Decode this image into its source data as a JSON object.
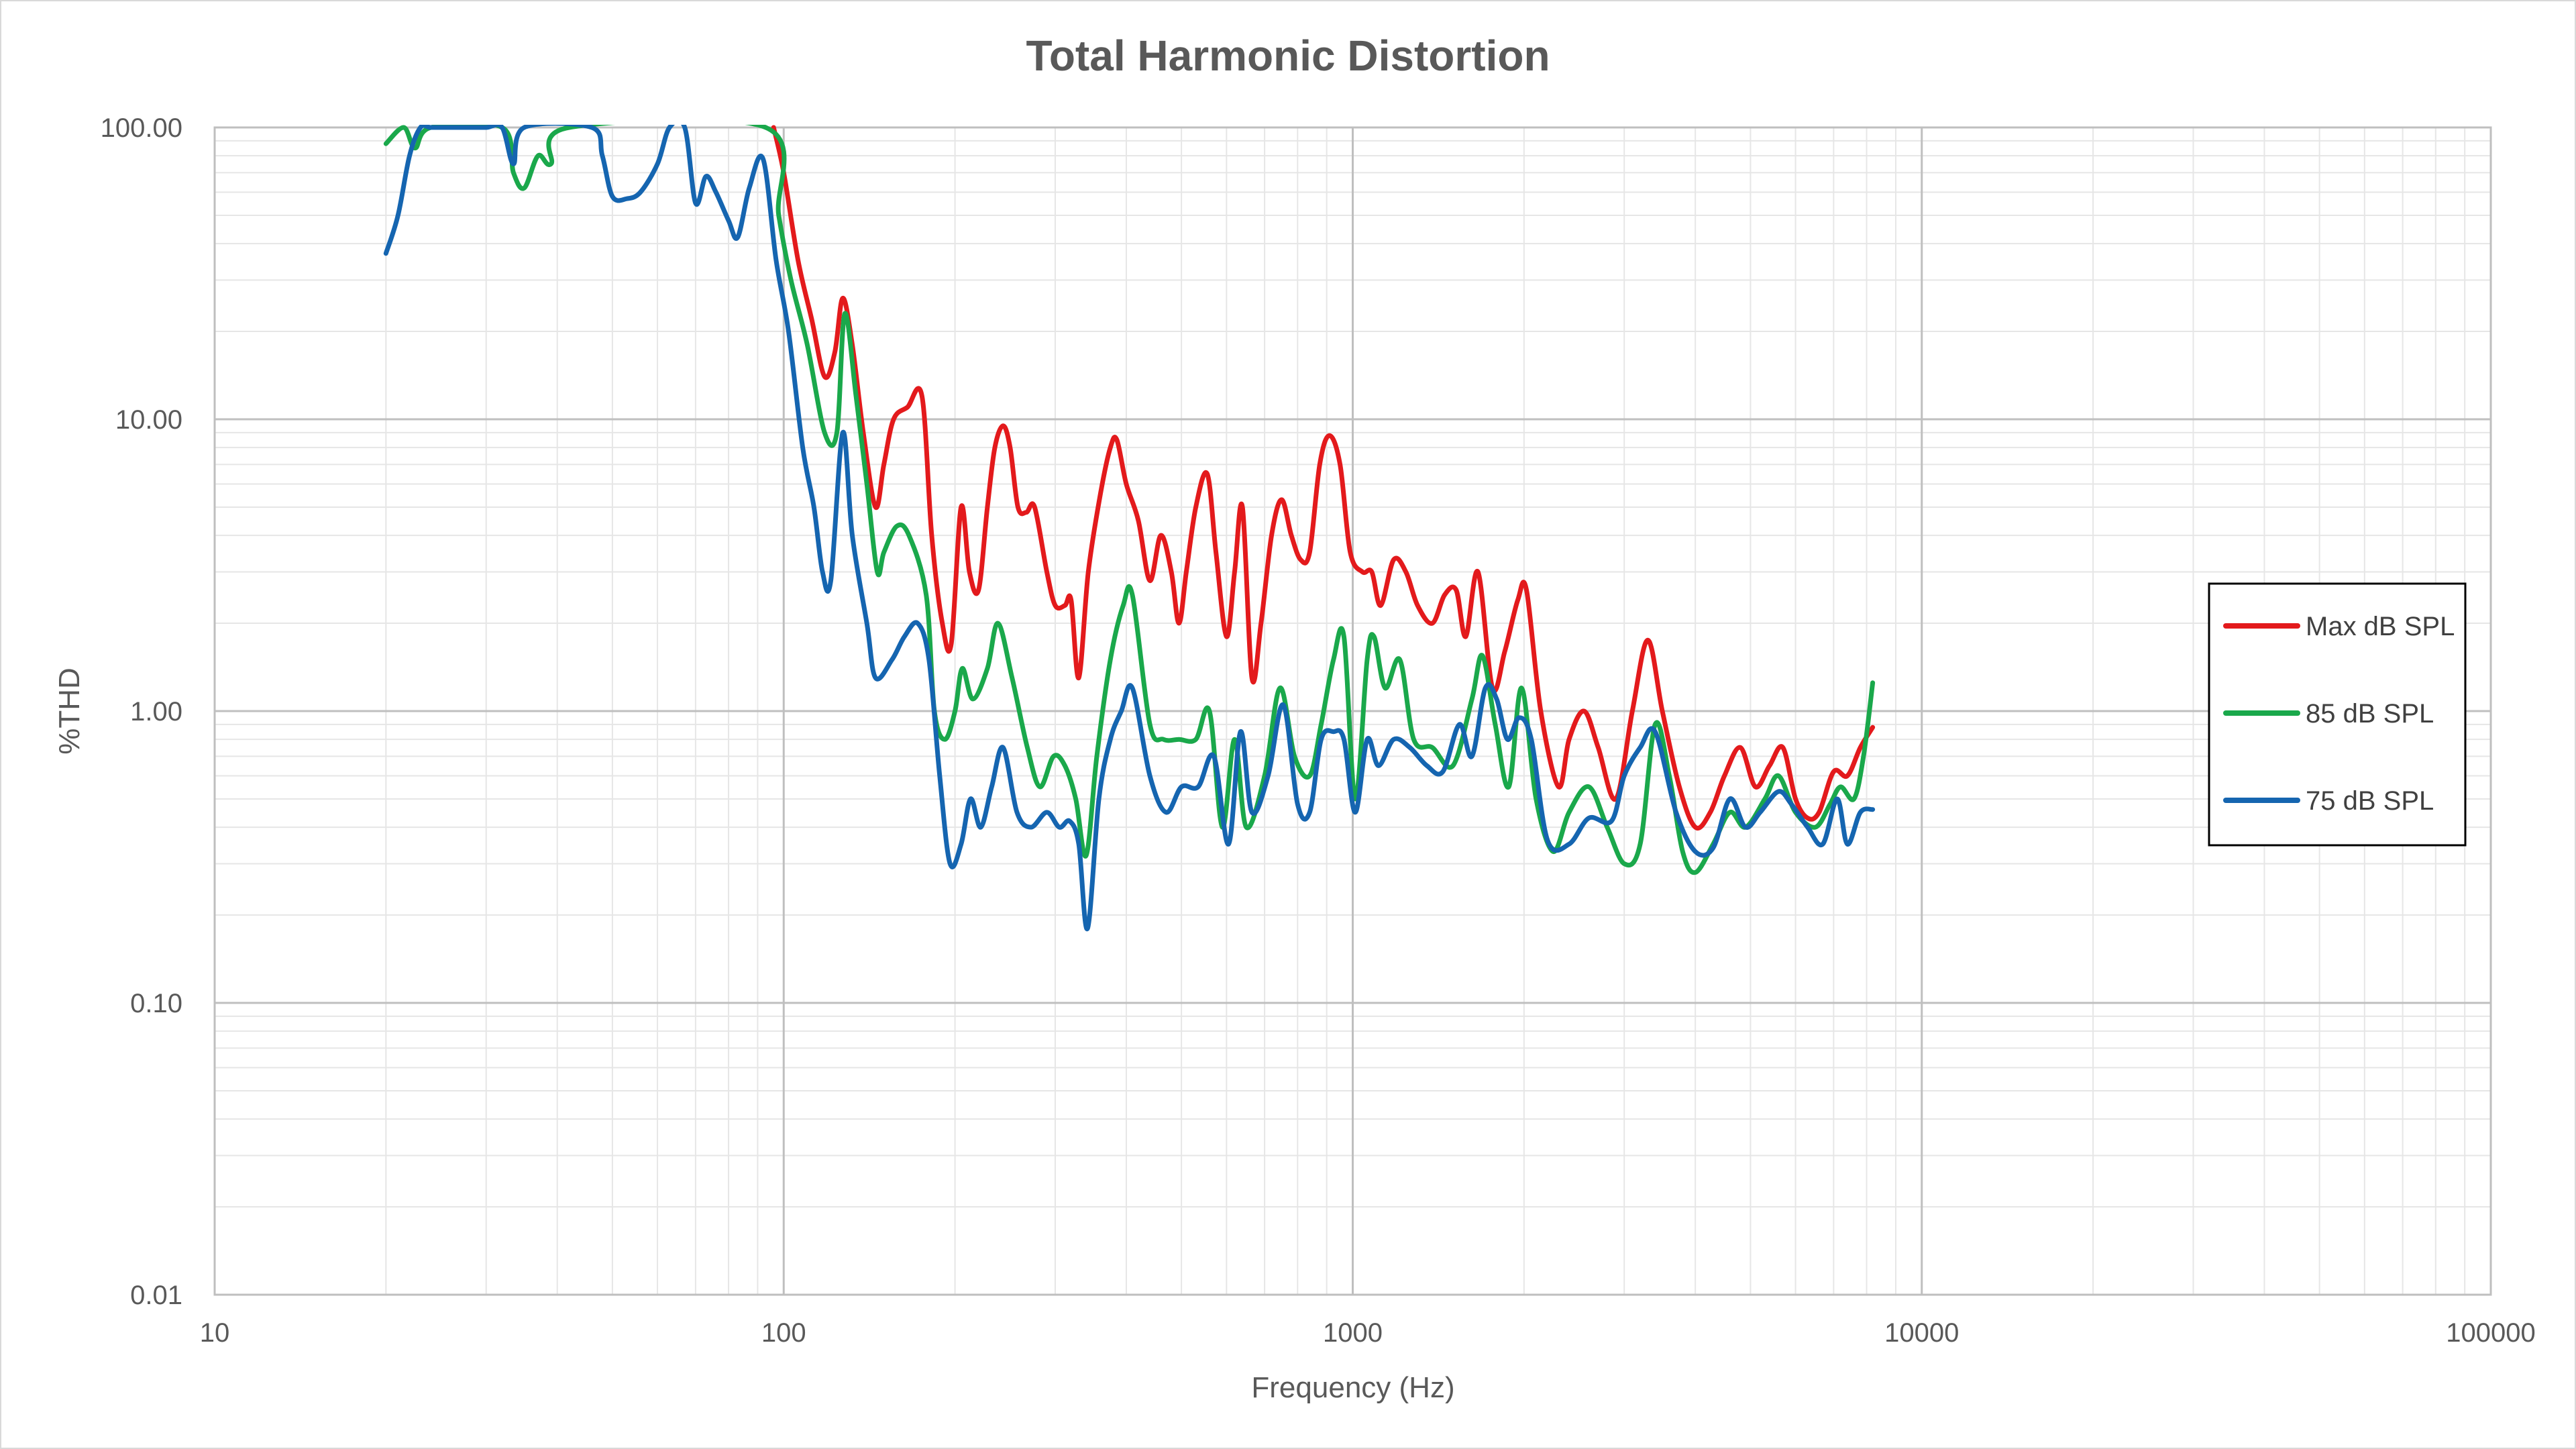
{
  "chart_data": {
    "type": "line",
    "title": "Total Harmonic Distortion",
    "xlabel": "Frequency (Hz)",
    "ylabel": "%THD",
    "x_scale": "log",
    "y_scale": "log",
    "xlim": [
      10,
      100000
    ],
    "ylim": [
      0.01,
      100
    ],
    "x_ticks": [
      10,
      100,
      1000,
      10000,
      100000
    ],
    "x_tick_labels": [
      "10",
      "100",
      "1000",
      "10000",
      "100000"
    ],
    "y_ticks": [
      0.01,
      0.1,
      1,
      10,
      100
    ],
    "y_tick_labels": [
      "0.01",
      "0.10",
      "1.00",
      "10.00",
      "100.00"
    ],
    "grid": true,
    "legend_position": "right",
    "series": [
      {
        "name": "Max dB SPL",
        "color": "#e31a1c",
        "points": [
          [
            96,
            100
          ],
          [
            100,
            70
          ],
          [
            106,
            35
          ],
          [
            112,
            22
          ],
          [
            118,
            14
          ],
          [
            123,
            17
          ],
          [
            127,
            26
          ],
          [
            132,
            18
          ],
          [
            138,
            9
          ],
          [
            145,
            5
          ],
          [
            150,
            7
          ],
          [
            156,
            10
          ],
          [
            165,
            11
          ],
          [
            175,
            12
          ],
          [
            182,
            4
          ],
          [
            190,
            2
          ],
          [
            197,
            1.7
          ],
          [
            205,
            5
          ],
          [
            212,
            3
          ],
          [
            220,
            2.6
          ],
          [
            228,
            5
          ],
          [
            235,
            8
          ],
          [
            243,
            9.5
          ],
          [
            250,
            8
          ],
          [
            258,
            5
          ],
          [
            267,
            4.8
          ],
          [
            276,
            5
          ],
          [
            290,
            3
          ],
          [
            300,
            2.3
          ],
          [
            312,
            2.3
          ],
          [
            320,
            2.4
          ],
          [
            330,
            1.3
          ],
          [
            343,
            3
          ],
          [
            360,
            5.5
          ],
          [
            375,
            8
          ],
          [
            385,
            8.5
          ],
          [
            400,
            6
          ],
          [
            420,
            4.5
          ],
          [
            440,
            2.8
          ],
          [
            460,
            4
          ],
          [
            480,
            3
          ],
          [
            495,
            2
          ],
          [
            510,
            3
          ],
          [
            530,
            5
          ],
          [
            555,
            6.5
          ],
          [
            575,
            3.5
          ],
          [
            600,
            1.8
          ],
          [
            620,
            3
          ],
          [
            640,
            5
          ],
          [
            665,
            1.3
          ],
          [
            690,
            2
          ],
          [
            720,
            4
          ],
          [
            750,
            5.3
          ],
          [
            780,
            4
          ],
          [
            810,
            3.3
          ],
          [
            840,
            3.5
          ],
          [
            875,
            7
          ],
          [
            910,
            8.8
          ],
          [
            950,
            7
          ],
          [
            990,
            3.5
          ],
          [
            1040,
            3
          ],
          [
            1080,
            3
          ],
          [
            1120,
            2.3
          ],
          [
            1180,
            3.3
          ],
          [
            1240,
            3
          ],
          [
            1300,
            2.3
          ],
          [
            1380,
            2
          ],
          [
            1450,
            2.5
          ],
          [
            1520,
            2.6
          ],
          [
            1580,
            1.8
          ],
          [
            1660,
            3
          ],
          [
            1760,
            1.2
          ],
          [
            1850,
            1.6
          ],
          [
            1950,
            2.4
          ],
          [
            2020,
            2.6
          ],
          [
            2140,
            1
          ],
          [
            2300,
            0.55
          ],
          [
            2400,
            0.8
          ],
          [
            2550,
            1
          ],
          [
            2700,
            0.75
          ],
          [
            2900,
            0.5
          ],
          [
            3100,
            1
          ],
          [
            3300,
            1.75
          ],
          [
            3500,
            1
          ],
          [
            3750,
            0.55
          ],
          [
            4000,
            0.4
          ],
          [
            4250,
            0.45
          ],
          [
            4500,
            0.6
          ],
          [
            4800,
            0.75
          ],
          [
            5100,
            0.55
          ],
          [
            5400,
            0.65
          ],
          [
            5700,
            0.75
          ],
          [
            6000,
            0.5
          ],
          [
            6300,
            0.43
          ],
          [
            6600,
            0.45
          ],
          [
            7000,
            0.62
          ],
          [
            7400,
            0.6
          ],
          [
            7800,
            0.75
          ],
          [
            8200,
            0.88
          ]
        ]
      },
      {
        "name": "85 dB SPL",
        "color": "#1aa84b",
        "points": [
          [
            20,
            88
          ],
          [
            21.5,
            100
          ],
          [
            22.5,
            85
          ],
          [
            24,
            100
          ],
          [
            32,
            100
          ],
          [
            33.5,
            70
          ],
          [
            35,
            62
          ],
          [
            37,
            80
          ],
          [
            39,
            75
          ],
          [
            42,
            100
          ],
          [
            93,
            100
          ],
          [
            98,
            50
          ],
          [
            103,
            30
          ],
          [
            110,
            18
          ],
          [
            118,
            9
          ],
          [
            124,
            9
          ],
          [
            128,
            23
          ],
          [
            134,
            12
          ],
          [
            140,
            6
          ],
          [
            146,
            3
          ],
          [
            150,
            3.5
          ],
          [
            158,
            4.3
          ],
          [
            166,
            4
          ],
          [
            178,
            2.5
          ],
          [
            184,
            1
          ],
          [
            192,
            0.8
          ],
          [
            200,
            1
          ],
          [
            206,
            1.4
          ],
          [
            215,
            1.1
          ],
          [
            228,
            1.4
          ],
          [
            238,
            2
          ],
          [
            252,
            1.3
          ],
          [
            268,
            0.75
          ],
          [
            282,
            0.55
          ],
          [
            298,
            0.7
          ],
          [
            312,
            0.65
          ],
          [
            326,
            0.5
          ],
          [
            340,
            0.32
          ],
          [
            355,
            0.7
          ],
          [
            375,
            1.5
          ],
          [
            395,
            2.3
          ],
          [
            410,
            2.5
          ],
          [
            440,
            0.9
          ],
          [
            465,
            0.8
          ],
          [
            495,
            0.8
          ],
          [
            530,
            0.8
          ],
          [
            560,
            1
          ],
          [
            590,
            0.4
          ],
          [
            620,
            0.8
          ],
          [
            650,
            0.4
          ],
          [
            700,
            0.6
          ],
          [
            745,
            1.2
          ],
          [
            790,
            0.7
          ],
          [
            840,
            0.6
          ],
          [
            880,
            0.9
          ],
          [
            925,
            1.5
          ],
          [
            965,
            1.8
          ],
          [
            1010,
            0.5
          ],
          [
            1060,
            1.5
          ],
          [
            1090,
            1.8
          ],
          [
            1140,
            1.2
          ],
          [
            1210,
            1.5
          ],
          [
            1280,
            0.8
          ],
          [
            1380,
            0.75
          ],
          [
            1500,
            0.65
          ],
          [
            1620,
            1.1
          ],
          [
            1690,
            1.55
          ],
          [
            1780,
            0.9
          ],
          [
            1880,
            0.55
          ],
          [
            1980,
            1.2
          ],
          [
            2100,
            0.5
          ],
          [
            2250,
            0.33
          ],
          [
            2400,
            0.45
          ],
          [
            2600,
            0.55
          ],
          [
            2800,
            0.4
          ],
          [
            3000,
            0.3
          ],
          [
            3200,
            0.35
          ],
          [
            3400,
            0.9
          ],
          [
            3600,
            0.6
          ],
          [
            3800,
            0.33
          ],
          [
            4000,
            0.28
          ],
          [
            4300,
            0.35
          ],
          [
            4600,
            0.45
          ],
          [
            4900,
            0.4
          ],
          [
            5300,
            0.5
          ],
          [
            5600,
            0.6
          ],
          [
            6000,
            0.45
          ],
          [
            6500,
            0.4
          ],
          [
            6900,
            0.48
          ],
          [
            7200,
            0.55
          ],
          [
            7600,
            0.5
          ],
          [
            7900,
            0.7
          ],
          [
            8200,
            1.25
          ]
        ]
      },
      {
        "name": "75 dB SPL",
        "color": "#1565b0",
        "points": [
          [
            20,
            37
          ],
          [
            21,
            50
          ],
          [
            22,
            80
          ],
          [
            23,
            100
          ],
          [
            24,
            100
          ],
          [
            26,
            100
          ],
          [
            28,
            100
          ],
          [
            30,
            100
          ],
          [
            32,
            100
          ],
          [
            33.5,
            75
          ],
          [
            35,
            100
          ],
          [
            46,
            100
          ],
          [
            48,
            80
          ],
          [
            50,
            58
          ],
          [
            53,
            57
          ],
          [
            56,
            60
          ],
          [
            60,
            75
          ],
          [
            63,
            100
          ],
          [
            67,
            100
          ],
          [
            70,
            55
          ],
          [
            73,
            68
          ],
          [
            76,
            60
          ],
          [
            80,
            48
          ],
          [
            83,
            42
          ],
          [
            87,
            62
          ],
          [
            92,
            78
          ],
          [
            97,
            35
          ],
          [
            102,
            20
          ],
          [
            108,
            8
          ],
          [
            113,
            5
          ],
          [
            117,
            3
          ],
          [
            121,
            2.8
          ],
          [
            127,
            9
          ],
          [
            132,
            4
          ],
          [
            140,
            2
          ],
          [
            145,
            1.3
          ],
          [
            155,
            1.5
          ],
          [
            163,
            1.8
          ],
          [
            172,
            2
          ],
          [
            180,
            1.5
          ],
          [
            188,
            0.6
          ],
          [
            196,
            0.3
          ],
          [
            205,
            0.35
          ],
          [
            213,
            0.5
          ],
          [
            222,
            0.4
          ],
          [
            232,
            0.55
          ],
          [
            243,
            0.75
          ],
          [
            257,
            0.45
          ],
          [
            272,
            0.4
          ],
          [
            290,
            0.45
          ],
          [
            305,
            0.4
          ],
          [
            318,
            0.42
          ],
          [
            330,
            0.35
          ],
          [
            342,
            0.18
          ],
          [
            358,
            0.5
          ],
          [
            375,
            0.8
          ],
          [
            392,
            1
          ],
          [
            410,
            1.2
          ],
          [
            440,
            0.6
          ],
          [
            470,
            0.45
          ],
          [
            500,
            0.55
          ],
          [
            535,
            0.55
          ],
          [
            570,
            0.7
          ],
          [
            605,
            0.35
          ],
          [
            635,
            0.85
          ],
          [
            665,
            0.45
          ],
          [
            710,
            0.6
          ],
          [
            755,
            1.05
          ],
          [
            800,
            0.48
          ],
          [
            840,
            0.45
          ],
          [
            880,
            0.8
          ],
          [
            925,
            0.85
          ],
          [
            965,
            0.8
          ],
          [
            1010,
            0.45
          ],
          [
            1060,
            0.8
          ],
          [
            1110,
            0.65
          ],
          [
            1180,
            0.8
          ],
          [
            1260,
            0.75
          ],
          [
            1350,
            0.65
          ],
          [
            1440,
            0.62
          ],
          [
            1540,
            0.9
          ],
          [
            1620,
            0.7
          ],
          [
            1710,
            1.2
          ],
          [
            1790,
            1.1
          ],
          [
            1870,
            0.8
          ],
          [
            1960,
            0.95
          ],
          [
            2060,
            0.8
          ],
          [
            2200,
            0.36
          ],
          [
            2400,
            0.35
          ],
          [
            2600,
            0.43
          ],
          [
            2850,
            0.42
          ],
          [
            3000,
            0.6
          ],
          [
            3200,
            0.75
          ],
          [
            3400,
            0.85
          ],
          [
            3700,
            0.45
          ],
          [
            4000,
            0.33
          ],
          [
            4300,
            0.34
          ],
          [
            4600,
            0.5
          ],
          [
            4900,
            0.4
          ],
          [
            5200,
            0.45
          ],
          [
            5600,
            0.53
          ],
          [
            5900,
            0.48
          ],
          [
            6300,
            0.4
          ],
          [
            6700,
            0.35
          ],
          [
            7100,
            0.5
          ],
          [
            7400,
            0.35
          ],
          [
            7800,
            0.45
          ],
          [
            8200,
            0.46
          ]
        ]
      }
    ]
  }
}
